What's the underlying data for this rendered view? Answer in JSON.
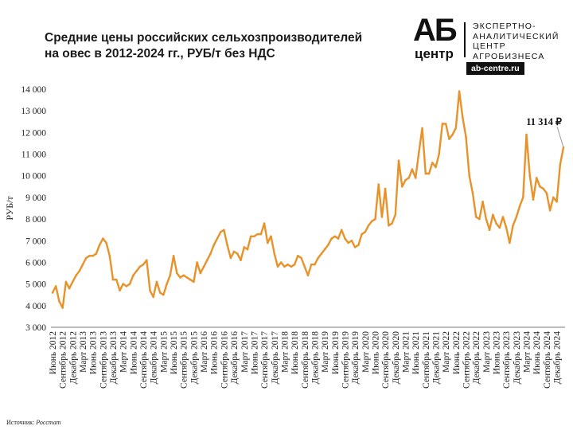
{
  "title": {
    "line1": "Средние цены российских сельхозпроизводителей",
    "line2": "на овес в 2012-2024 гг., РУБ/т без НДС"
  },
  "logo": {
    "mark_top": "АБ",
    "mark_bottom": "центр",
    "text_line1": "ЭКСПЕРТНО-",
    "text_line2": "АНАЛИТИЧЕСКИЙ",
    "text_line3": "ЦЕНТР",
    "text_line4": "АГРОБИЗНЕСА",
    "url": "ab-centre.ru"
  },
  "source": {
    "label": "Источник:",
    "name": "Росстат"
  },
  "chart_data": {
    "type": "line",
    "title": "Средние цены российских сельхозпроизводителей на овес в 2012-2024 гг., РУБ/т без НДС",
    "xlabel": "",
    "ylabel": "РУБ/т",
    "ylim": [
      3000,
      14000
    ],
    "yticks": [
      "3 000",
      "4 000",
      "5 000",
      "6 000",
      "7 000",
      "8 000",
      "9 000",
      "10 000",
      "11 000",
      "12 000",
      "13 000",
      "14 000"
    ],
    "grid": false,
    "line_color": "#E8922A",
    "start_month": "Июнь 2012",
    "x_labels": [
      "Июнь 2012",
      "Сентябрь 2012",
      "Декабрь 2012",
      "Март 2013",
      "Июнь 2013",
      "Сентябрь 2013",
      "Декабрь 2013",
      "Март 2014",
      "Июнь 2014",
      "Сентябрь 2014",
      "Декабрь 2014",
      "Март 2015",
      "Июнь 2015",
      "Сентябрь 2015",
      "Декабрь 2015",
      "Март 2016",
      "Июнь 2016",
      "Сентябрь 2016",
      "Декабрь 2016",
      "Март 2017",
      "Июнь 2017",
      "Сентябрь 2017",
      "Декабрь 2017",
      "Март 2018",
      "Июнь 2018",
      "Сентябрь 2018",
      "Декабрь 2018",
      "Март 2019",
      "Июнь 2019",
      "Сентябрь 2019",
      "Декабрь 2019",
      "Март 2020",
      "Июнь 2020",
      "Сентябрь 2020",
      "Декабрь 2020",
      "Март 2021",
      "Июнь 2021",
      "Сентябрь 2021",
      "Декабрь 2021",
      "Март 2022",
      "Июнь 2022",
      "Сентябрь 2022",
      "Декабрь 2022",
      "Март 2023",
      "Июнь 2023",
      "Сентябрь 2023",
      "Декабрь 2023",
      "Март 2024",
      "Июнь 2024",
      "Сентябрь 2024",
      "Декабрь 2024"
    ],
    "series": [
      {
        "values": [
          4600,
          4900,
          4200,
          3900,
          5100,
          4800,
          5100,
          5400,
          5600,
          5900,
          6200,
          6300,
          6300,
          6400,
          6800,
          7100,
          6900,
          6300,
          5200,
          5200,
          4700,
          5000,
          4900,
          5000,
          5400,
          5600,
          5800,
          5900,
          6100,
          4700,
          4400,
          5100,
          4600,
          4500,
          5000,
          5400,
          6300,
          5500,
          5300,
          5400,
          5300,
          5200,
          5100,
          6000,
          5500,
          5800,
          6100,
          6400,
          6800,
          7100,
          7400,
          7500,
          6800,
          6200,
          6500,
          6400,
          6100,
          6700,
          6600,
          7200,
          7200,
          7300,
          7300,
          7800,
          6900,
          7200,
          6400,
          5800,
          6000,
          5800,
          5900,
          5800,
          5900,
          6300,
          6200,
          5800,
          5400,
          5900,
          5900,
          6200,
          6400,
          6600,
          6800,
          7100,
          7200,
          7100,
          7500,
          7100,
          6900,
          7000,
          6700,
          6800,
          7300,
          7400,
          7700,
          7900,
          8000,
          9600,
          8100,
          9400,
          7700,
          7800,
          8200,
          10700,
          9500,
          9800,
          9900,
          10300,
          9900,
          11100,
          12200,
          10100,
          10100,
          10600,
          10400,
          11000,
          12400,
          12400,
          11700,
          11900,
          12200,
          13900,
          12700,
          11800,
          10000,
          9200,
          8100,
          8000,
          8800,
          8000,
          7500,
          8200,
          7800,
          7600,
          8100,
          7600,
          6900,
          7700,
          8100,
          8600,
          9000,
          11900,
          10000,
          8900,
          9900,
          9500,
          9400,
          9200,
          8400,
          9000,
          8800,
          10500,
          11314
        ]
      }
    ],
    "annotations": [
      {
        "text": "11 314 ₽",
        "target": "last-point"
      }
    ]
  }
}
